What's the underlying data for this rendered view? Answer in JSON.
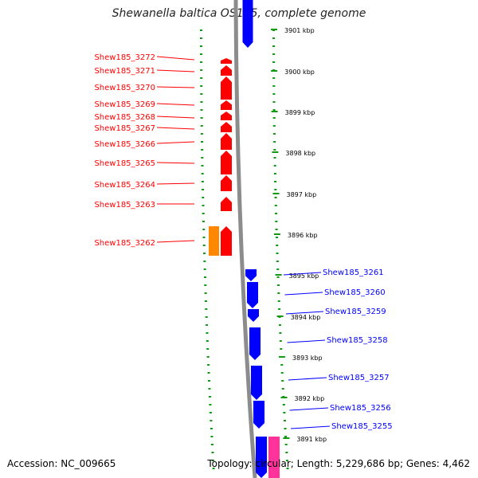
{
  "title": "Shewanella baltica OS185, complete genome",
  "footer": {
    "accession": "Accession: NC_009665",
    "topology": "Topology: circular; Length: 5,229,686 bp; Genes: 4,462"
  },
  "colors": {
    "forward_gene": "#ff0000",
    "reverse_gene": "#0000ff",
    "other_feature": "#ff8800",
    "other_feature_2": "#ff3399",
    "backbone": "#8c8c8c",
    "tick": "#119911"
  },
  "kbp_ticks": [
    {
      "label": "3901 kbp"
    },
    {
      "label": "3900 kbp"
    },
    {
      "label": "3899 kbp"
    },
    {
      "label": "3898 kbp"
    },
    {
      "label": "3897 kbp"
    },
    {
      "label": "3896 kbp"
    },
    {
      "label": "3895 kbp"
    },
    {
      "label": "3894 kbp"
    },
    {
      "label": "3893 kbp"
    },
    {
      "label": "3892 kbp"
    },
    {
      "label": "3891 kbp"
    }
  ],
  "left_genes": [
    {
      "label": "Shew185_3272"
    },
    {
      "label": "Shew185_3271"
    },
    {
      "label": "Shew185_3270"
    },
    {
      "label": "Shew185_3269"
    },
    {
      "label": "Shew185_3268"
    },
    {
      "label": "Shew185_3267"
    },
    {
      "label": "Shew185_3266"
    },
    {
      "label": "Shew185_3265"
    },
    {
      "label": "Shew185_3264"
    },
    {
      "label": "Shew185_3263"
    },
    {
      "label": "Shew185_3262"
    }
  ],
  "right_genes": [
    {
      "label": "Shew185_3261"
    },
    {
      "label": "Shew185_3260"
    },
    {
      "label": "Shew185_3259"
    },
    {
      "label": "Shew185_3258"
    },
    {
      "label": "Shew185_3257"
    },
    {
      "label": "Shew185_3256"
    },
    {
      "label": "Shew185_3255"
    }
  ]
}
